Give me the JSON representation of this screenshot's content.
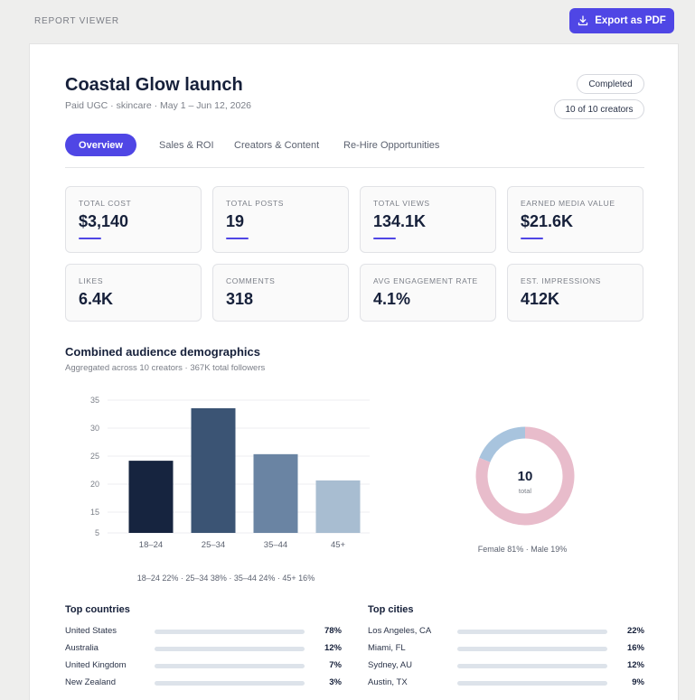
{
  "header": {
    "label": "REPORT VIEWER",
    "export_label": "Export as PDF"
  },
  "report": {
    "title": "Coastal Glow launch",
    "subtitle": "Paid UGC · skincare · May 1 – Jun 12, 2026",
    "status": "Completed",
    "creators_badge": "10 of 10 creators"
  },
  "tabs": [
    {
      "label": "Overview",
      "active": true
    },
    {
      "label": "Sales & ROI",
      "active": false
    },
    {
      "label": "Creators & Content",
      "active": false
    },
    {
      "label": "Re-Hire Opportunities",
      "active": false
    }
  ],
  "stats": [
    {
      "label": "TOTAL COST",
      "value": "$3,140"
    },
    {
      "label": "TOTAL POSTS",
      "value": "19"
    },
    {
      "label": "TOTAL VIEWS",
      "value": "134.1K"
    },
    {
      "label": "EARNED MEDIA VALUE",
      "value": "$21.6K"
    },
    {
      "label": "LIKES",
      "value": "6.4K"
    },
    {
      "label": "COMMENTS",
      "value": "318"
    },
    {
      "label": "AVG ENGAGEMENT RATE",
      "value": "4.1%"
    },
    {
      "label": "EST. IMPRESSIONS",
      "value": "412K"
    }
  ],
  "demographics": {
    "title": "Combined audience demographics",
    "subtitle": "Aggregated across 10 creators · 367K total followers",
    "age_caption": "18–24 22% · 25–34 38% · 35–44 24% · 45+ 16%",
    "gender_caption": "Female 81% · Male 19%",
    "donut_center_value": "10",
    "donut_center_label": "total"
  },
  "chart_data": [
    {
      "type": "bar",
      "categories": [
        "18-24",
        "25-34",
        "35-44",
        "45+"
      ],
      "values": [
        22,
        38,
        24,
        16
      ],
      "yticks": [
        "35",
        "30",
        "25",
        "20",
        "15",
        "5"
      ],
      "colors": [
        "#16243f",
        "#3b5474",
        "#6a84a3",
        "#a8bdd1"
      ],
      "grid": true
    },
    {
      "type": "pie",
      "categories": [
        "Female",
        "Male"
      ],
      "values": [
        81,
        19
      ],
      "colors": [
        "#e8bccb",
        "#a8c4de"
      ]
    }
  ],
  "top_countries": {
    "title": "Top countries",
    "items": [
      {
        "name": "United States",
        "pct": "78%",
        "value": 78
      },
      {
        "name": "Australia",
        "pct": "12%",
        "value": 12
      },
      {
        "name": "United Kingdom",
        "pct": "7%",
        "value": 7
      },
      {
        "name": "New Zealand",
        "pct": "3%",
        "value": 3
      }
    ]
  },
  "top_cities": {
    "title": "Top cities",
    "items": [
      {
        "name": "Los Angeles, CA",
        "pct": "22%",
        "value": 22
      },
      {
        "name": "Miami, FL",
        "pct": "16%",
        "value": 16
      },
      {
        "name": "Sydney, AU",
        "pct": "12%",
        "value": 12
      },
      {
        "name": "Austin, TX",
        "pct": "9%",
        "value": 9
      }
    ]
  },
  "colors": {
    "accent": "#4f46e5",
    "text": "#16203a",
    "track": "#dde3ea"
  }
}
